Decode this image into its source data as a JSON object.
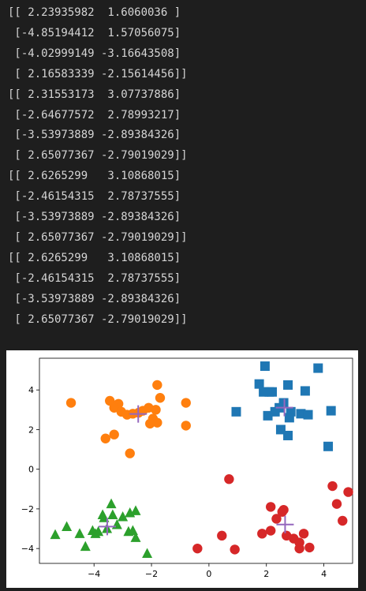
{
  "output": {
    "lines": [
      "[[ 2.23935982  1.6060036 ]",
      " [-4.85194412  1.57056075]",
      " [-4.02999149 -3.16643508]",
      " [ 2.16583339 -2.15614456]]",
      "[[ 2.31553173  3.07737886]",
      " [-2.64677572  2.78993217]",
      " [-3.53973889 -2.89384326]",
      " [ 2.65077367 -2.79019029]]",
      "[[ 2.6265299   3.10868015]",
      " [-2.46154315  2.78737555]",
      " [-3.53973889 -2.89384326]",
      " [ 2.65077367 -2.79019029]]",
      "[[ 2.6265299   3.10868015]",
      " [-2.46154315  2.78737555]",
      " [-3.53973889 -2.89384326]",
      " [ 2.65077367 -2.79019029]]"
    ]
  },
  "chart_data": {
    "type": "scatter",
    "title": "",
    "xlabel": "",
    "ylabel": "",
    "xlim": [
      -5.9,
      5.0
    ],
    "ylim": [
      -4.75,
      5.6
    ],
    "xticks": [
      -4,
      -2,
      0,
      2,
      4
    ],
    "yticks": [
      -4,
      -2,
      0,
      2,
      4
    ],
    "xtick_labels": [
      "−4",
      "−2",
      "0",
      "2",
      "4"
    ],
    "ytick_labels": [
      "−4",
      "−2",
      "0",
      "2",
      "4"
    ],
    "grid": false,
    "series": [
      {
        "marker": "square",
        "color": "#1f77b4",
        "points": [
          [
            0.95,
            2.9
          ],
          [
            1.75,
            4.3
          ],
          [
            1.95,
            5.2
          ],
          [
            2.75,
            4.25
          ],
          [
            2.1,
            3.9
          ],
          [
            1.9,
            3.9
          ],
          [
            2.2,
            3.9
          ],
          [
            2.6,
            3.35
          ],
          [
            3.2,
            2.8
          ],
          [
            2.45,
            3.1
          ],
          [
            2.05,
            2.7
          ],
          [
            2.3,
            2.9
          ],
          [
            2.85,
            2.9
          ],
          [
            2.5,
            2.0
          ],
          [
            2.8,
            2.6
          ],
          [
            2.75,
            1.7
          ],
          [
            3.35,
            3.95
          ],
          [
            3.45,
            2.75
          ],
          [
            3.8,
            5.1
          ],
          [
            4.25,
            2.95
          ],
          [
            4.15,
            1.15
          ]
        ]
      },
      {
        "marker": "circle",
        "color": "#ff7f0e",
        "points": [
          [
            -4.8,
            3.35
          ],
          [
            -3.6,
            1.55
          ],
          [
            -3.3,
            1.75
          ],
          [
            -3.45,
            3.45
          ],
          [
            -3.15,
            3.3
          ],
          [
            -3.3,
            3.1
          ],
          [
            -3.05,
            2.9
          ],
          [
            -2.85,
            2.75
          ],
          [
            -2.65,
            2.8
          ],
          [
            -2.45,
            2.85
          ],
          [
            -2.3,
            2.95
          ],
          [
            -2.1,
            3.1
          ],
          [
            -1.85,
            3.0
          ],
          [
            -1.8,
            2.35
          ],
          [
            -1.95,
            2.55
          ],
          [
            -2.05,
            2.3
          ],
          [
            -1.8,
            4.25
          ],
          [
            -1.7,
            3.6
          ],
          [
            -2.75,
            0.8
          ],
          [
            -0.8,
            3.35
          ],
          [
            -0.8,
            2.2
          ]
        ]
      },
      {
        "marker": "triangle",
        "color": "#2ca02c",
        "points": [
          [
            -5.35,
            -3.3
          ],
          [
            -4.95,
            -2.9
          ],
          [
            -4.5,
            -3.25
          ],
          [
            -4.3,
            -3.9
          ],
          [
            -4.05,
            -3.1
          ],
          [
            -3.95,
            -3.25
          ],
          [
            -3.85,
            -3.15
          ],
          [
            -3.65,
            -2.45
          ],
          [
            -3.7,
            -2.3
          ],
          [
            -3.55,
            -3.0
          ],
          [
            -3.4,
            -1.75
          ],
          [
            -3.35,
            -2.3
          ],
          [
            -3.2,
            -2.8
          ],
          [
            -3.0,
            -2.4
          ],
          [
            -2.8,
            -3.15
          ],
          [
            -2.75,
            -2.2
          ],
          [
            -2.65,
            -3.1
          ],
          [
            -2.55,
            -2.1
          ],
          [
            -2.55,
            -3.45
          ],
          [
            -2.15,
            -4.25
          ]
        ]
      },
      {
        "marker": "circle",
        "color": "#d62728",
        "points": [
          [
            -0.4,
            -4.0
          ],
          [
            0.45,
            -3.35
          ],
          [
            0.7,
            -0.5
          ],
          [
            0.9,
            -4.05
          ],
          [
            1.85,
            -3.25
          ],
          [
            2.15,
            -1.9
          ],
          [
            2.15,
            -3.1
          ],
          [
            2.35,
            -2.5
          ],
          [
            2.55,
            -2.15
          ],
          [
            2.6,
            -2.05
          ],
          [
            2.7,
            -3.35
          ],
          [
            2.95,
            -3.5
          ],
          [
            3.15,
            -3.7
          ],
          [
            3.3,
            -3.25
          ],
          [
            3.15,
            -4.0
          ],
          [
            3.5,
            -3.95
          ],
          [
            4.3,
            -0.85
          ],
          [
            4.45,
            -1.75
          ],
          [
            4.65,
            -2.6
          ],
          [
            4.85,
            -1.15
          ]
        ]
      }
    ],
    "centroids": {
      "marker": "plus",
      "color": "#9467bd",
      "points": [
        [
          2.6265299,
          3.10868015
        ],
        [
          -2.46154315,
          2.78737555
        ],
        [
          -3.53973889,
          -2.89384326
        ],
        [
          2.65077367,
          -2.79019029
        ]
      ]
    }
  }
}
